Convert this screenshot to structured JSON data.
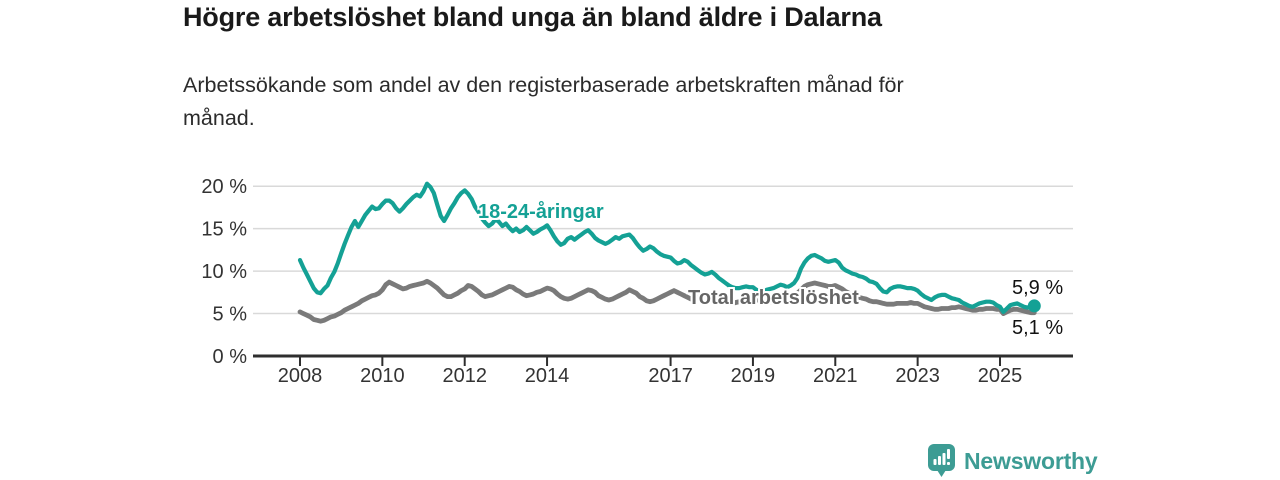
{
  "header": {
    "title": "Högre arbetslöshet bland unga än bland äldre i Dalarna",
    "subtitle_line1": "Arbetssökande som andel av den registerbaserade arbetskraften månad för",
    "subtitle_line2": "månad."
  },
  "branding": {
    "name": "Newsworthy",
    "icon": "bar-chart-speech-bubble-icon",
    "color": "#3d9c94"
  },
  "chart_data": {
    "type": "line",
    "title": "Högre arbetslöshet bland unga än bland äldre i Dalarna",
    "subtitle": "Arbetssökande som andel av den registerbaserade arbetskraften månad för månad.",
    "unit": "%",
    "grid": "horizontal",
    "legend_position": "inline-labels",
    "xlim": [
      2006.9,
      2026.8
    ],
    "ylim": [
      0,
      21.5
    ],
    "x_ticks": {
      "years": [
        2008,
        2010,
        2012,
        2014,
        2017,
        2019,
        2021,
        2023,
        2025
      ],
      "labels": [
        "2008",
        "2010",
        "2012",
        "2014",
        "2017",
        "2019",
        "2021",
        "2023",
        "2025"
      ]
    },
    "y_ticks": {
      "values": [
        0,
        5,
        10,
        15,
        20
      ],
      "labels": [
        "0 %",
        "5 %",
        "10 %",
        "15 %",
        "20 %"
      ]
    },
    "style": {
      "grid_color": "#d9d9d9",
      "axis_color": "#2e2e2e",
      "tick_label_color": "#333333"
    },
    "series": [
      {
        "name": "18-24-åringar",
        "color": "#14a195",
        "line_width": 4.2,
        "end_label": "5,9 %",
        "end_value": 5.9,
        "end_dot": true,
        "start_year": 2008,
        "frequency": "monthly",
        "monthly_values": [
          11.3,
          10.4,
          9.6,
          8.8,
          8.0,
          7.5,
          7.4,
          7.9,
          8.3,
          9.2,
          9.9,
          10.9,
          12.1,
          13.2,
          14.2,
          15.2,
          15.9,
          15.2,
          15.9,
          16.6,
          17.1,
          17.6,
          17.3,
          17.4,
          17.9,
          18.3,
          18.3,
          18.0,
          17.4,
          17.0,
          17.4,
          17.9,
          18.3,
          18.7,
          19.0,
          18.8,
          19.4,
          20.3,
          19.9,
          19.2,
          17.8,
          16.5,
          15.9,
          16.6,
          17.4,
          18.0,
          18.7,
          19.2,
          19.5,
          19.1,
          18.5,
          17.6,
          17.0,
          16.2,
          15.7,
          15.3,
          15.6,
          16.1,
          15.8,
          15.3,
          15.6,
          15.1,
          14.7,
          15.0,
          14.6,
          14.8,
          15.2,
          14.8,
          14.4,
          14.6,
          14.9,
          15.1,
          15.4,
          14.8,
          14.1,
          13.5,
          13.1,
          13.3,
          13.8,
          14.0,
          13.7,
          14.0,
          14.3,
          14.6,
          14.8,
          14.4,
          13.9,
          13.6,
          13.4,
          13.2,
          13.4,
          13.7,
          14.0,
          13.8,
          14.1,
          14.2,
          14.3,
          13.9,
          13.3,
          12.8,
          12.4,
          12.6,
          12.9,
          12.7,
          12.3,
          12.0,
          11.8,
          11.7,
          11.6,
          11.2,
          10.9,
          11.0,
          11.3,
          11.1,
          10.7,
          10.4,
          10.1,
          9.8,
          9.6,
          9.7,
          9.9,
          9.6,
          9.2,
          8.9,
          8.6,
          8.3,
          8.1,
          8.0,
          8.0,
          8.1,
          8.2,
          8.1,
          8.1,
          7.8,
          7.6,
          7.6,
          7.8,
          7.9,
          8.0,
          8.2,
          8.4,
          8.3,
          8.1,
          8.3,
          8.6,
          9.2,
          10.3,
          11.0,
          11.5,
          11.8,
          11.9,
          11.7,
          11.5,
          11.2,
          11.1,
          11.2,
          11.3,
          11.0,
          10.4,
          10.1,
          9.9,
          9.7,
          9.6,
          9.4,
          9.3,
          9.1,
          8.8,
          8.7,
          8.5,
          8.0,
          7.6,
          7.5,
          7.9,
          8.1,
          8.2,
          8.2,
          8.1,
          8.0,
          8.0,
          7.9,
          7.7,
          7.3,
          7.0,
          6.8,
          6.6,
          6.9,
          7.1,
          7.2,
          7.2,
          7.0,
          6.8,
          6.7,
          6.6,
          6.3,
          6.1,
          5.9,
          5.8,
          6.0,
          6.2,
          6.3,
          6.4,
          6.4,
          6.3,
          6.0,
          5.8,
          5.2,
          5.6,
          6.0,
          6.1,
          6.2,
          6.0,
          5.8,
          5.7,
          5.8,
          5.9
        ]
      },
      {
        "name": "Total arbetslöshet",
        "color": "#7a7a7a",
        "line_width": 4.8,
        "end_label": "5,1 %",
        "end_value": 5.1,
        "end_dot": false,
        "start_year": 2008,
        "frequency": "monthly",
        "monthly_values": [
          5.2,
          5.0,
          4.8,
          4.6,
          4.3,
          4.2,
          4.1,
          4.2,
          4.4,
          4.6,
          4.7,
          4.9,
          5.1,
          5.4,
          5.6,
          5.8,
          6.0,
          6.2,
          6.5,
          6.7,
          6.9,
          7.1,
          7.2,
          7.4,
          7.8,
          8.4,
          8.7,
          8.5,
          8.3,
          8.1,
          7.9,
          8.0,
          8.2,
          8.3,
          8.4,
          8.5,
          8.6,
          8.8,
          8.6,
          8.3,
          8.0,
          7.6,
          7.2,
          7.0,
          7.0,
          7.2,
          7.4,
          7.7,
          7.9,
          8.3,
          8.2,
          7.9,
          7.6,
          7.2,
          7.0,
          7.1,
          7.2,
          7.4,
          7.6,
          7.8,
          8.0,
          8.2,
          8.1,
          7.8,
          7.6,
          7.3,
          7.1,
          7.2,
          7.3,
          7.5,
          7.6,
          7.8,
          8.0,
          7.9,
          7.7,
          7.3,
          7.0,
          6.8,
          6.7,
          6.8,
          7.0,
          7.2,
          7.4,
          7.6,
          7.8,
          7.7,
          7.5,
          7.1,
          6.9,
          6.7,
          6.6,
          6.7,
          6.9,
          7.1,
          7.3,
          7.5,
          7.8,
          7.6,
          7.4,
          7.0,
          6.8,
          6.5,
          6.4,
          6.5,
          6.7,
          6.9,
          7.1,
          7.3,
          7.5,
          7.7,
          7.5,
          7.3,
          7.1,
          6.9,
          6.7,
          6.8,
          6.9,
          7.0,
          7.1,
          7.2,
          7.4,
          7.2,
          7.0,
          6.7,
          6.5,
          6.3,
          6.2,
          6.3,
          6.4,
          6.5,
          6.6,
          6.7,
          6.8,
          6.7,
          6.5,
          6.3,
          6.2,
          6.3,
          6.4,
          6.5,
          6.6,
          6.7,
          6.8,
          6.9,
          7.0,
          7.4,
          7.8,
          8.2,
          8.4,
          8.5,
          8.6,
          8.5,
          8.4,
          8.3,
          8.2,
          8.2,
          8.3,
          8.1,
          7.9,
          7.6,
          7.4,
          7.2,
          7.0,
          6.9,
          6.8,
          6.7,
          6.5,
          6.4,
          6.4,
          6.3,
          6.2,
          6.1,
          6.1,
          6.1,
          6.2,
          6.2,
          6.2,
          6.2,
          6.3,
          6.2,
          6.2,
          6.0,
          5.8,
          5.7,
          5.6,
          5.5,
          5.5,
          5.6,
          5.6,
          5.6,
          5.7,
          5.7,
          5.8,
          5.7,
          5.6,
          5.5,
          5.4,
          5.4,
          5.5,
          5.5,
          5.6,
          5.6,
          5.6,
          5.5,
          5.5,
          5.0,
          5.2,
          5.4,
          5.5,
          5.5,
          5.4,
          5.3,
          5.2,
          5.1,
          5.1
        ]
      }
    ]
  }
}
